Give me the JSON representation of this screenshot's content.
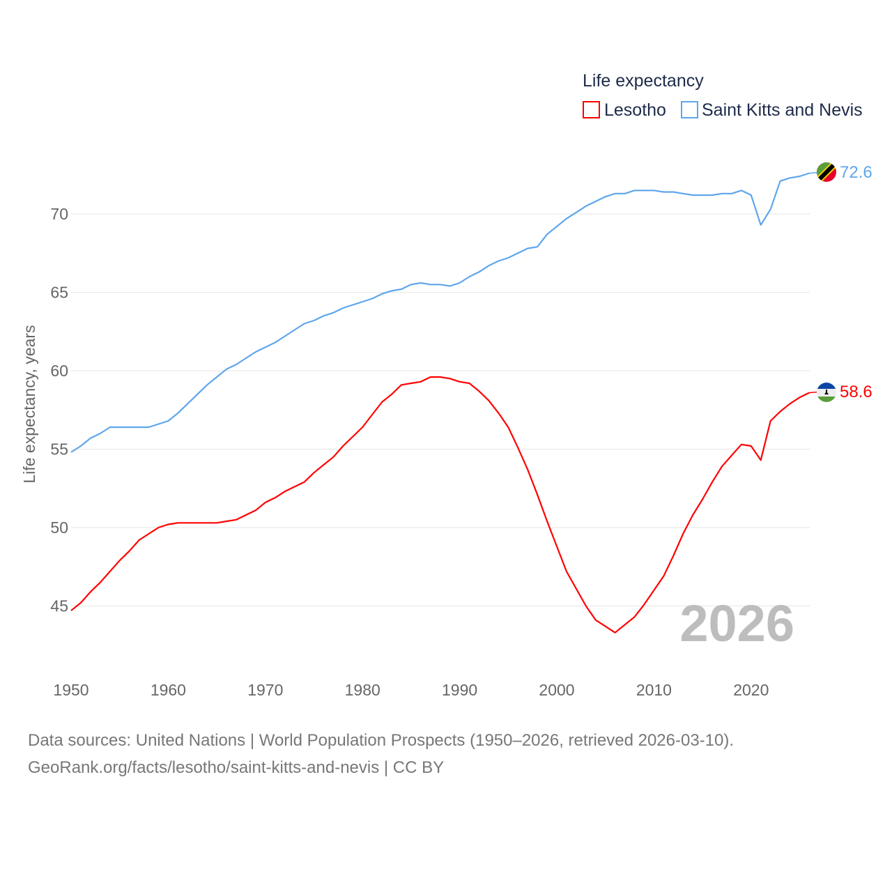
{
  "chart_data": {
    "type": "line",
    "title": "Life expectancy",
    "ylabel": "Life expectancy, years",
    "xlabel": "",
    "xlim": [
      1950,
      2026
    ],
    "ylim": [
      42,
      74
    ],
    "yticks": [
      45,
      50,
      55,
      60,
      65,
      70
    ],
    "xticks": [
      1950,
      1960,
      1970,
      1980,
      1990,
      2000,
      2010,
      2020
    ],
    "grid": true,
    "legend_position": "top-right",
    "year_watermark": "2026",
    "x": [
      1950,
      1951,
      1952,
      1953,
      1954,
      1955,
      1956,
      1957,
      1958,
      1959,
      1960,
      1961,
      1962,
      1963,
      1964,
      1965,
      1966,
      1967,
      1968,
      1969,
      1970,
      1971,
      1972,
      1973,
      1974,
      1975,
      1976,
      1977,
      1978,
      1979,
      1980,
      1981,
      1982,
      1983,
      1984,
      1985,
      1986,
      1987,
      1988,
      1989,
      1990,
      1991,
      1992,
      1993,
      1994,
      1995,
      1996,
      1997,
      1998,
      1999,
      2000,
      2001,
      2002,
      2003,
      2004,
      2005,
      2006,
      2007,
      2008,
      2009,
      2010,
      2011,
      2012,
      2013,
      2014,
      2015,
      2016,
      2017,
      2018,
      2019,
      2020,
      2021,
      2022,
      2023,
      2024,
      2025,
      2026
    ],
    "series": [
      {
        "name": "Lesotho",
        "color": "#ff0000",
        "end_label": "58.6",
        "values": [
          44.7,
          45.2,
          45.9,
          46.5,
          47.2,
          47.9,
          48.5,
          49.2,
          49.6,
          50.0,
          50.2,
          50.3,
          50.3,
          50.3,
          50.3,
          50.3,
          50.4,
          50.5,
          50.8,
          51.1,
          51.6,
          51.9,
          52.3,
          52.6,
          52.9,
          53.5,
          54.0,
          54.5,
          55.2,
          55.8,
          56.4,
          57.2,
          58.0,
          58.5,
          59.1,
          59.2,
          59.3,
          59.6,
          59.6,
          59.5,
          59.3,
          59.2,
          58.7,
          58.1,
          57.3,
          56.4,
          55.1,
          53.7,
          52.1,
          50.4,
          48.8,
          47.2,
          46.1,
          45.0,
          44.1,
          43.7,
          43.3,
          43.8,
          44.3,
          45.1,
          46.0,
          46.9,
          48.2,
          49.6,
          50.8,
          51.8,
          52.9,
          53.9,
          54.6,
          55.3,
          55.2,
          54.3,
          56.8,
          57.4,
          57.9,
          58.3,
          58.6
        ]
      },
      {
        "name": "Saint Kitts and Nevis",
        "color": "#5ea6ec",
        "end_label": "72.6",
        "values": [
          54.8,
          55.2,
          55.7,
          56.0,
          56.4,
          56.4,
          56.4,
          56.4,
          56.4,
          56.6,
          56.8,
          57.3,
          57.9,
          58.5,
          59.1,
          59.6,
          60.1,
          60.4,
          60.8,
          61.2,
          61.5,
          61.8,
          62.2,
          62.6,
          63.0,
          63.2,
          63.5,
          63.7,
          64.0,
          64.2,
          64.4,
          64.6,
          64.9,
          65.1,
          65.2,
          65.5,
          65.6,
          65.5,
          65.5,
          65.4,
          65.6,
          66.0,
          66.3,
          66.7,
          67.0,
          67.2,
          67.5,
          67.8,
          67.9,
          68.7,
          69.2,
          69.7,
          70.1,
          70.5,
          70.8,
          71.1,
          71.3,
          71.3,
          71.5,
          71.5,
          71.5,
          71.4,
          71.4,
          71.3,
          71.2,
          71.2,
          71.2,
          71.3,
          71.3,
          71.5,
          71.2,
          69.3,
          70.3,
          72.1,
          72.3,
          72.4,
          72.6
        ]
      }
    ]
  },
  "source": {
    "line1": "Data sources: United Nations | World Population Prospects (1950–2026, retrieved 2026-03-10).",
    "line2": "GeoRank.org/facts/lesotho/saint-kitts-and-nevis | CC BY"
  }
}
